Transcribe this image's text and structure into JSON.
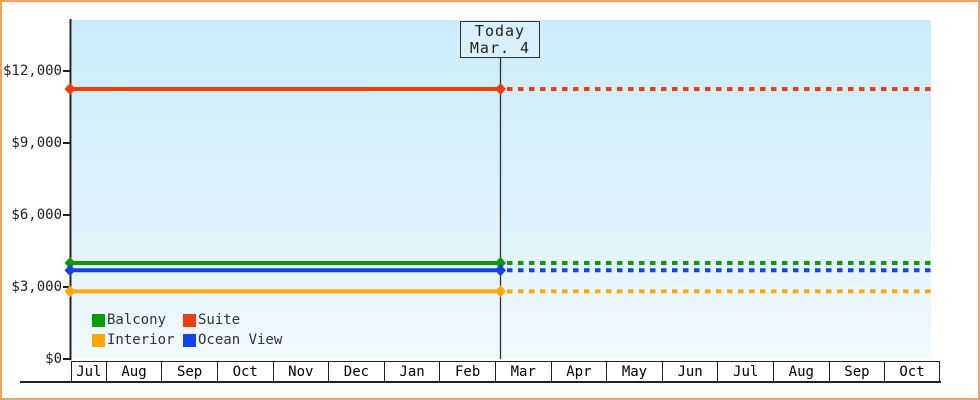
{
  "chart_data": {
    "type": "line",
    "title": "",
    "x_axis": {
      "months": [
        "Jul",
        "Aug",
        "Sep",
        "Oct",
        "Nov",
        "Dec",
        "Jan",
        "Feb",
        "Mar",
        "Apr",
        "May",
        "Jun",
        "Jul",
        "Aug",
        "Sep",
        "Oct"
      ]
    },
    "y_axis": {
      "ticks": [
        {
          "label": "$0",
          "value": 0
        },
        {
          "label": "$3,000",
          "value": 3000
        },
        {
          "label": "$6,000",
          "value": 6000
        },
        {
          "label": "$9,000",
          "value": 9000
        },
        {
          "label": "$12,000",
          "value": 12000
        }
      ],
      "ylim": [
        0,
        14100
      ]
    },
    "today": {
      "line1": "Today",
      "line2": "Mar. 4"
    },
    "series": [
      {
        "name": "Suite",
        "color": "#ee3d0e",
        "value": 11250
      },
      {
        "name": "Balcony",
        "color": "#0a9a0a",
        "value": 4000
      },
      {
        "name": "Ocean View",
        "color": "#1144ee",
        "value": 3700
      },
      {
        "name": "Interior",
        "color": "#ffa60a",
        "value": 2820
      }
    ],
    "legend": {
      "rows": [
        [
          "Balcony",
          "Suite"
        ],
        [
          "Interior",
          "Ocean View"
        ]
      ]
    },
    "style": {
      "solid_until": "today",
      "dashed_after": "today"
    }
  }
}
